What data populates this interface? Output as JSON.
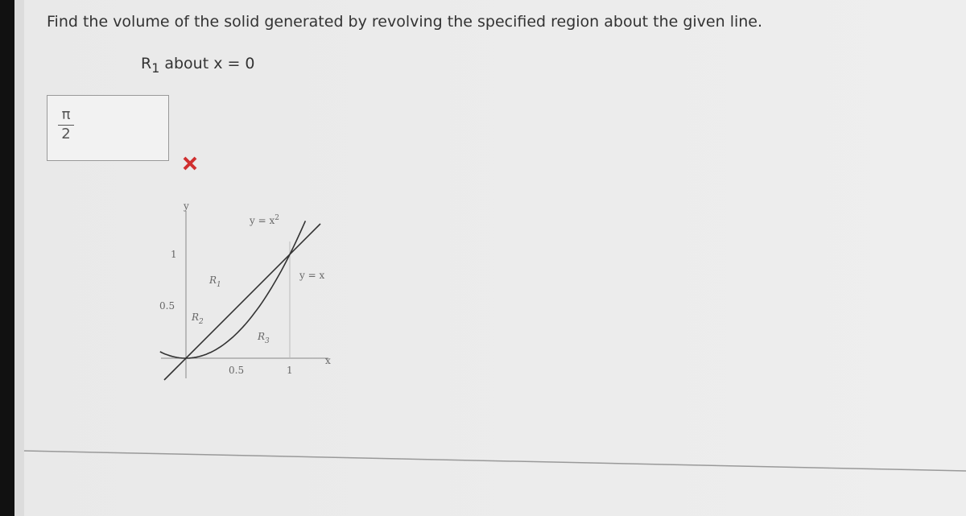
{
  "question": "Find the volume of the solid generated by revolving the specified region about the given line.",
  "region": {
    "letter": "R",
    "sub": "1",
    "rest": "about x = 0"
  },
  "answer": {
    "numerator": "π",
    "denominator": "2"
  },
  "graph": {
    "y_axis_label": "y",
    "x_axis_label": "x",
    "curve_parabola": {
      "base": "y = x",
      "sup": "2"
    },
    "curve_line": "y = x",
    "y_ticks": [
      "1",
      "0.5"
    ],
    "x_ticks": [
      "0.5",
      "1"
    ],
    "regions": [
      {
        "letter": "R",
        "sub": "1"
      },
      {
        "letter": "R",
        "sub": "2"
      },
      {
        "letter": "R",
        "sub": "3"
      }
    ]
  }
}
